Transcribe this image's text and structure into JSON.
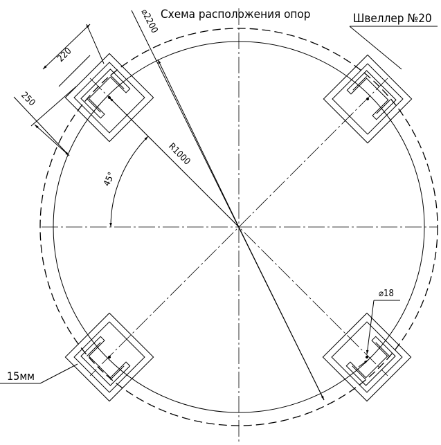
{
  "title": "Схема расположения опор",
  "labels": {
    "channel": "Швеллер №20",
    "diameter": "⌀2200",
    "width": "220",
    "height": "250",
    "radius": "R1000",
    "angle": "45°",
    "hole": "⌀18",
    "offset": "15мм"
  }
}
